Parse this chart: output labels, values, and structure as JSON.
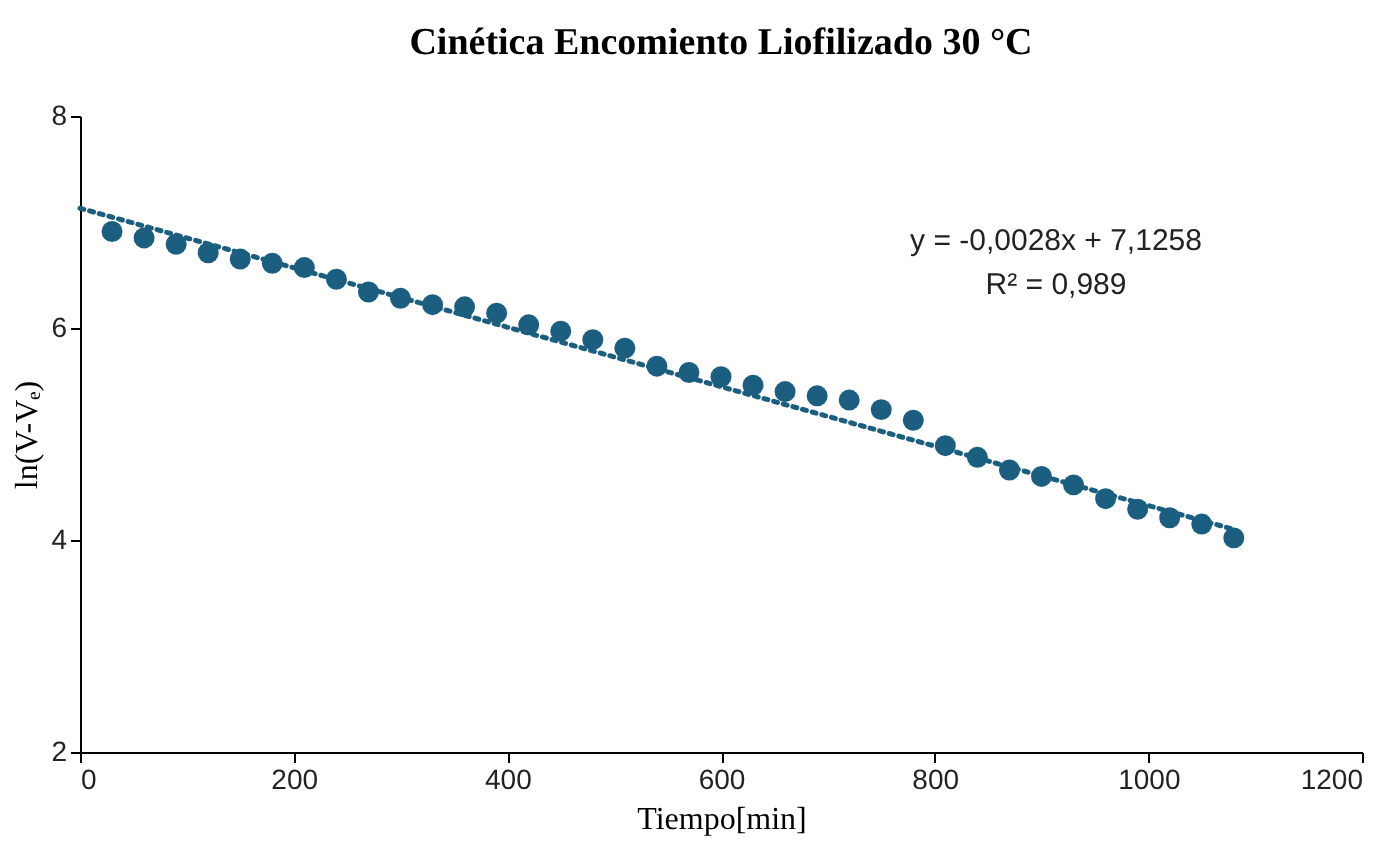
{
  "chart_data": {
    "type": "scatter",
    "title": "Cinética Encomiento Liofilizado 30 °C",
    "xlabel": "Tiempo[min]",
    "ylabel": "ln(V-Vₑ)",
    "annotations": [
      "y = -0,0028x + 7,1258",
      "R² = 0,989"
    ],
    "series": [
      {
        "color": "#1b5e80",
        "marker": "circle",
        "x": [
          30,
          60,
          90,
          120,
          150,
          180,
          210,
          240,
          270,
          300,
          330,
          360,
          390,
          420,
          450,
          480,
          510,
          540,
          570,
          600,
          630,
          660,
          690,
          720,
          750,
          780,
          810,
          840,
          870,
          900,
          930,
          960,
          990,
          1020,
          1050,
          1080
        ],
        "values": [
          6.91,
          6.85,
          6.79,
          6.71,
          6.65,
          6.61,
          6.57,
          6.46,
          6.34,
          6.28,
          6.22,
          6.2,
          6.14,
          6.03,
          5.97,
          5.89,
          5.81,
          5.64,
          5.58,
          5.54,
          5.46,
          5.4,
          5.36,
          5.32,
          5.23,
          5.13,
          4.89,
          4.78,
          4.66,
          4.6,
          4.52,
          4.39,
          4.29,
          4.21,
          4.15,
          4.02
        ]
      },
      {
        "type": "line",
        "color": "#1b5e80",
        "line_style": "dotted",
        "marker": "none",
        "x": [
          0,
          1080
        ],
        "values": [
          7.13,
          4.1
        ]
      }
    ],
    "xlim": [
      0,
      1200
    ],
    "xticks": [
      0,
      200,
      400,
      600,
      800,
      1000,
      1200
    ],
    "ylim": [
      2,
      8
    ],
    "yticks": [
      2,
      4,
      6,
      8
    ],
    "grid": false
  }
}
